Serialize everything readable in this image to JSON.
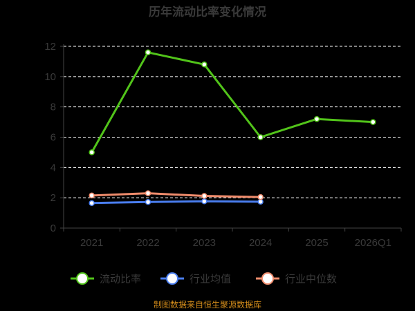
{
  "chart_data": {
    "type": "line",
    "title": "历年流动比率变化情况",
    "categories": [
      "2021",
      "2022",
      "2023",
      "2024",
      "2025",
      "2026Q1"
    ],
    "yticks": [
      "0",
      "2",
      "4",
      "6",
      "8",
      "10",
      "12"
    ],
    "ylim": [
      0,
      12
    ],
    "grid": true,
    "legend_position": "bottom",
    "series": [
      {
        "name": "流动比率",
        "color": "#52c41a",
        "values": [
          5.0,
          11.6,
          10.8,
          6.0,
          7.2,
          7.0
        ]
      },
      {
        "name": "行业均值",
        "color": "#4a7ef0",
        "values": [
          1.65,
          1.72,
          1.77,
          1.74,
          null,
          null
        ]
      },
      {
        "name": "行业中位数",
        "color": "#f08c6c",
        "values": [
          2.15,
          2.3,
          2.12,
          2.05,
          null,
          null
        ]
      }
    ],
    "source_note": "制图数据来自恒生聚源数据库"
  }
}
